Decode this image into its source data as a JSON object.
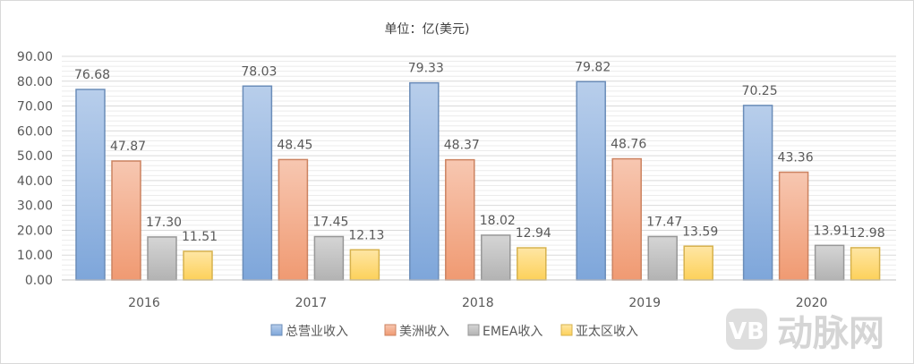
{
  "chart_data": {
    "type": "bar",
    "title": "单位：亿(美元)",
    "categories": [
      "2016",
      "2017",
      "2018",
      "2019",
      "2020"
    ],
    "series": [
      {
        "name": "总营业收入",
        "color": "#7ea6da",
        "values": [
          76.68,
          78.03,
          79.33,
          79.82,
          70.25
        ]
      },
      {
        "name": "美洲收入",
        "color": "#f09a72",
        "values": [
          47.87,
          48.45,
          48.37,
          48.76,
          43.36
        ]
      },
      {
        "name": "EMEA收入",
        "color": "#b3b3b3",
        "values": [
          17.3,
          17.45,
          18.02,
          17.47,
          13.91
        ]
      },
      {
        "name": "亚太区收入",
        "color": "#fdd15a",
        "values": [
          11.51,
          12.13,
          12.94,
          13.59,
          12.98
        ]
      }
    ],
    "ylim": [
      0,
      90
    ],
    "ytick_step": 10,
    "ytick_labels": [
      "0.00",
      "10.00",
      "20.00",
      "30.00",
      "40.00",
      "50.00",
      "60.00",
      "70.00",
      "80.00",
      "90.00"
    ],
    "data_labels": [
      [
        "76.68",
        "78.03",
        "79.33",
        "79.82",
        "70.25"
      ],
      [
        "47.87",
        "48.45",
        "48.37",
        "48.76",
        "43.36"
      ],
      [
        "17.30",
        "17.45",
        "18.02",
        "17.47",
        "13.91"
      ],
      [
        "11.51",
        "12.13",
        "12.94",
        "13.59",
        "12.98"
      ]
    ],
    "grid": true,
    "legend_position": "bottom"
  },
  "watermark": {
    "text": "动脉网",
    "badge": "VB"
  }
}
